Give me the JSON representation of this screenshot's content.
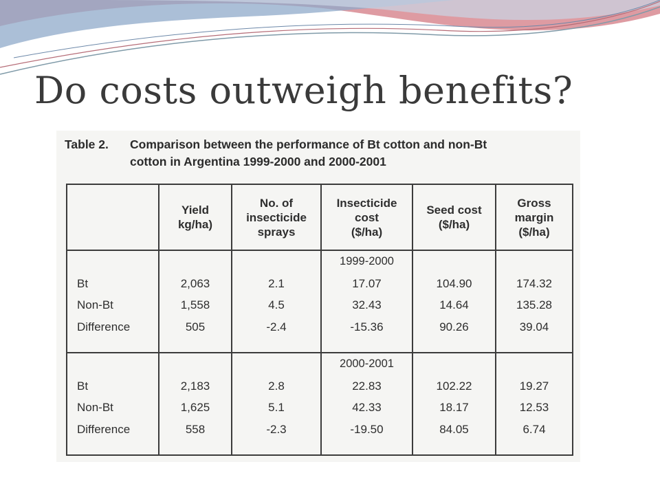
{
  "slide": {
    "title": "Do costs outweigh benefits?"
  },
  "theme_colors": {
    "swoosh_red": "#c0555f",
    "swoosh_blue": "#6f8fb8",
    "swoosh_teal": "#8aa8b8",
    "table_border": "#3b3b3b",
    "title_text": "#3a3a3a"
  },
  "table": {
    "label": "Table 2.",
    "caption_line1": "Comparison between the performance of Bt cotton and non-Bt",
    "caption_line2": "cotton in Argentina 1999-2000 and 2000-2001",
    "headers": [
      [
        "",
        ""
      ],
      [
        "Yield",
        "kg/ha)"
      ],
      [
        "No. of",
        "insecticide",
        "sprays"
      ],
      [
        "Insecticide",
        "cost",
        "($/ha)"
      ],
      [
        "Seed cost",
        "($/ha)"
      ],
      [
        "Gross",
        "margin",
        "($/ha)"
      ]
    ],
    "groups": [
      {
        "period": "1999-2000",
        "rows": [
          {
            "label": "Bt",
            "yield": "2,063",
            "sprays": "2.1",
            "insecticide_cost": "17.07",
            "seed_cost": "104.90",
            "gross_margin": "174.32"
          },
          {
            "label": "Non-Bt",
            "yield": "1,558",
            "sprays": "4.5",
            "insecticide_cost": "32.43",
            "seed_cost": "14.64",
            "gross_margin": "135.28"
          },
          {
            "label": "Difference",
            "yield": "505",
            "sprays": "-2.4",
            "insecticide_cost": "-15.36",
            "seed_cost": "90.26",
            "gross_margin": "39.04"
          }
        ]
      },
      {
        "period": "2000-2001",
        "rows": [
          {
            "label": "Bt",
            "yield": "2,183",
            "sprays": "2.8",
            "insecticide_cost": "22.83",
            "seed_cost": "102.22",
            "gross_margin": "19.27"
          },
          {
            "label": "Non-Bt",
            "yield": "1,625",
            "sprays": "5.1",
            "insecticide_cost": "42.33",
            "seed_cost": "18.17",
            "gross_margin": "12.53"
          },
          {
            "label": "Difference",
            "yield": "558",
            "sprays": "-2.3",
            "insecticide_cost": "-19.50",
            "seed_cost": "84.05",
            "gross_margin": "6.74"
          }
        ]
      }
    ]
  }
}
